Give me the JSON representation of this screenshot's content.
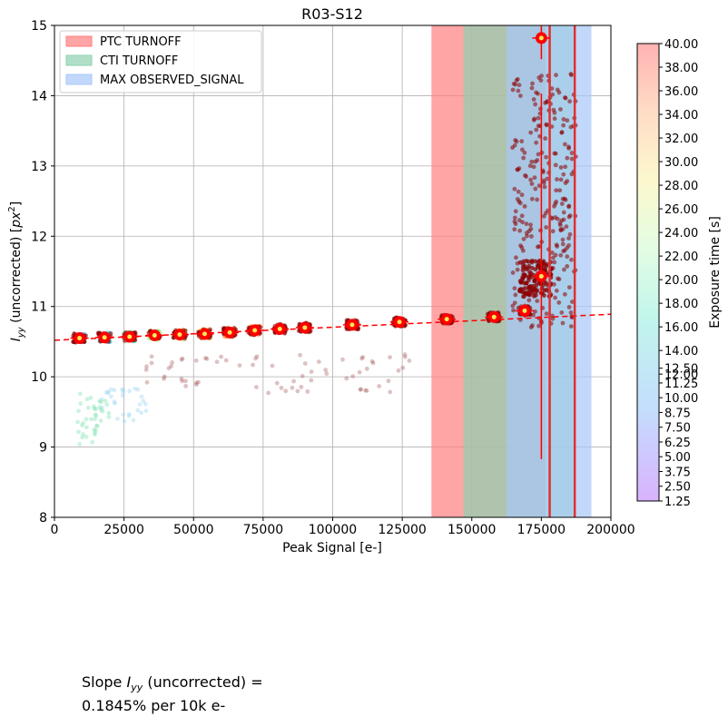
{
  "chart_data": {
    "type": "scatter",
    "title": "R03-S12",
    "xlabel": "Peak Signal [e-]",
    "ylabel": "I_yy (uncorrected) [px^2]",
    "xlim": [
      0,
      200000
    ],
    "ylim": [
      8,
      15
    ],
    "grid": true,
    "legend_position": "top-left",
    "x_ticks": [
      "0",
      "25000",
      "50000",
      "75000",
      "100000",
      "125000",
      "150000",
      "175000",
      "200000"
    ],
    "y_ticks": [
      "8",
      "9",
      "10",
      "11",
      "12",
      "13",
      "14",
      "15"
    ],
    "shaded_regions": [
      {
        "name": "PTC TURNOFF",
        "x_start": 135500,
        "x_end": 176500,
        "color": "#ff7f7f"
      },
      {
        "name": "CTI TURNOFF",
        "x_start": 147000,
        "x_end": 186500,
        "color": "#8ed1b0"
      },
      {
        "name": "MAX OBSERVED_SIGNAL",
        "x_start": 162500,
        "x_end": 193000,
        "color": "#a8c8f8"
      }
    ],
    "fit_line": {
      "x": [
        0,
        200000
      ],
      "y": [
        10.52,
        10.89
      ],
      "color": "#ff0000",
      "style": "dashed"
    },
    "binned_means": {
      "x": [
        9000,
        18000,
        27000,
        36000,
        45000,
        54000,
        63000,
        72000,
        81000,
        90000,
        107000,
        124000,
        141000,
        158000,
        169000,
        175000,
        175000
      ],
      "y": [
        10.55,
        10.56,
        10.57,
        10.59,
        10.6,
        10.61,
        10.63,
        10.66,
        10.68,
        10.7,
        10.74,
        10.78,
        10.82,
        10.85,
        10.94,
        11.43,
        14.82
      ],
      "yerr": [
        0.02,
        0.02,
        0.02,
        0.02,
        0.02,
        0.02,
        0.02,
        0.03,
        0.03,
        0.03,
        0.03,
        0.03,
        0.04,
        0.04,
        0.1,
        2.6,
        0.3
      ],
      "color": "#ff0000"
    },
    "vertical_lines_x": [
      178000,
      187000
    ],
    "colorbar": {
      "label": "Exposure time [s]",
      "ticks": [
        "1.25",
        "2.50",
        "3.75",
        "5.00",
        "6.25",
        "7.50",
        "8.75",
        "10.00",
        "11.25",
        "12.00",
        "12.50",
        "14.00",
        "16.00",
        "18.00",
        "20.00",
        "22.00",
        "24.00",
        "26.00",
        "28.00",
        "30.00",
        "32.00",
        "34.00",
        "36.00",
        "38.00",
        "40.00"
      ],
      "tick_values": [
        1.25,
        2.5,
        3.75,
        5,
        6.25,
        7.5,
        8.75,
        10,
        11.25,
        12,
        12.5,
        14,
        16,
        18,
        20,
        22,
        24,
        26,
        28,
        30,
        32,
        34,
        36,
        38,
        40
      ],
      "range": [
        1.25,
        40
      ],
      "colormap": "rainbow"
    },
    "footnote": [
      "Slope I_yy (uncorrected) =",
      "0.1845% per 10k e-"
    ]
  }
}
